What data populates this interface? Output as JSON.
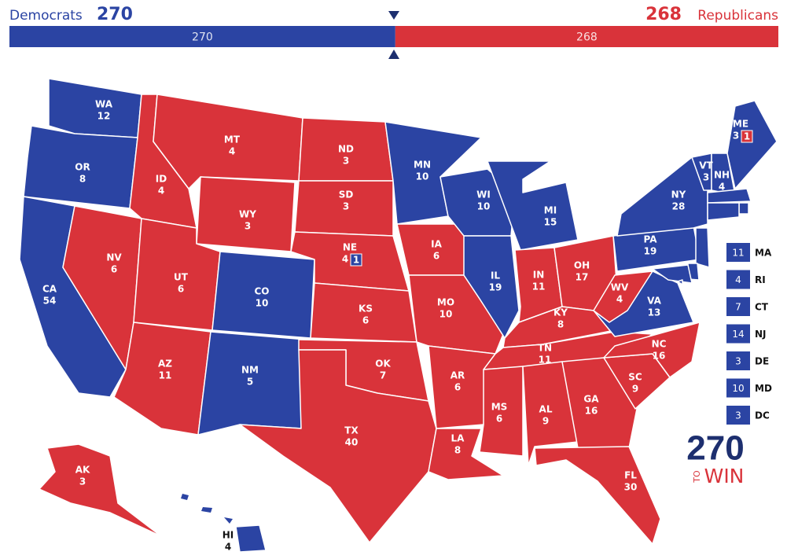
{
  "header": {
    "left": {
      "name": "Democrats",
      "total": 270,
      "color": "#2b44a3"
    },
    "right": {
      "name": "Republicans",
      "total": 268,
      "color": "#d9333a"
    }
  },
  "states": [
    {
      "abbr": "WA",
      "votes": 12,
      "color": "#2b44a3"
    },
    {
      "abbr": "OR",
      "votes": 8,
      "color": "#2b44a3"
    },
    {
      "abbr": "CA",
      "votes": 54,
      "color": "#2b44a3"
    },
    {
      "abbr": "NV",
      "votes": 6,
      "color": "#d9333a"
    },
    {
      "abbr": "ID",
      "votes": 4,
      "color": "#d9333a"
    },
    {
      "abbr": "MT",
      "votes": 4,
      "color": "#d9333a"
    },
    {
      "abbr": "WY",
      "votes": 3,
      "color": "#d9333a"
    },
    {
      "abbr": "UT",
      "votes": 6,
      "color": "#d9333a"
    },
    {
      "abbr": "CO",
      "votes": 10,
      "color": "#2b44a3"
    },
    {
      "abbr": "AZ",
      "votes": 11,
      "color": "#d9333a"
    },
    {
      "abbr": "NM",
      "votes": 5,
      "color": "#2b44a3"
    },
    {
      "abbr": "ND",
      "votes": 3,
      "color": "#d9333a"
    },
    {
      "abbr": "SD",
      "votes": 3,
      "color": "#d9333a"
    },
    {
      "abbr": "NE",
      "votes": 4,
      "color": "#d9333a",
      "district": {
        "votes": 1,
        "color": "#2b44a3"
      }
    },
    {
      "abbr": "KS",
      "votes": 6,
      "color": "#d9333a"
    },
    {
      "abbr": "OK",
      "votes": 7,
      "color": "#d9333a"
    },
    {
      "abbr": "TX",
      "votes": 40,
      "color": "#d9333a"
    },
    {
      "abbr": "MN",
      "votes": 10,
      "color": "#2b44a3"
    },
    {
      "abbr": "IA",
      "votes": 6,
      "color": "#d9333a"
    },
    {
      "abbr": "MO",
      "votes": 10,
      "color": "#d9333a"
    },
    {
      "abbr": "AR",
      "votes": 6,
      "color": "#d9333a"
    },
    {
      "abbr": "LA",
      "votes": 8,
      "color": "#d9333a"
    },
    {
      "abbr": "WI",
      "votes": 10,
      "color": "#2b44a3"
    },
    {
      "abbr": "IL",
      "votes": 19,
      "color": "#2b44a3"
    },
    {
      "abbr": "MI",
      "votes": 15,
      "color": "#2b44a3"
    },
    {
      "abbr": "IN",
      "votes": 11,
      "color": "#d9333a"
    },
    {
      "abbr": "OH",
      "votes": 17,
      "color": "#d9333a"
    },
    {
      "abbr": "KY",
      "votes": 8,
      "color": "#d9333a"
    },
    {
      "abbr": "TN",
      "votes": 11,
      "color": "#d9333a"
    },
    {
      "abbr": "MS",
      "votes": 6,
      "color": "#d9333a"
    },
    {
      "abbr": "AL",
      "votes": 9,
      "color": "#d9333a"
    },
    {
      "abbr": "GA",
      "votes": 16,
      "color": "#d9333a"
    },
    {
      "abbr": "FL",
      "votes": 30,
      "color": "#d9333a"
    },
    {
      "abbr": "SC",
      "votes": 9,
      "color": "#d9333a"
    },
    {
      "abbr": "NC",
      "votes": 16,
      "color": "#d9333a"
    },
    {
      "abbr": "VA",
      "votes": 13,
      "color": "#2b44a3"
    },
    {
      "abbr": "WV",
      "votes": 4,
      "color": "#d9333a"
    },
    {
      "abbr": "PA",
      "votes": 19,
      "color": "#2b44a3"
    },
    {
      "abbr": "NY",
      "votes": 28,
      "color": "#2b44a3"
    },
    {
      "abbr": "VT",
      "votes": 3,
      "color": "#2b44a3"
    },
    {
      "abbr": "NH",
      "votes": 4,
      "color": "#2b44a3"
    },
    {
      "abbr": "ME",
      "votes": 3,
      "color": "#2b44a3",
      "district": {
        "votes": 1,
        "color": "#d9333a"
      }
    },
    {
      "abbr": "MA",
      "votes": 11,
      "color": "#2b44a3",
      "callout": true
    },
    {
      "abbr": "RI",
      "votes": 4,
      "color": "#2b44a3",
      "callout": true
    },
    {
      "abbr": "CT",
      "votes": 7,
      "color": "#2b44a3",
      "callout": true
    },
    {
      "abbr": "NJ",
      "votes": 14,
      "color": "#2b44a3",
      "callout": true
    },
    {
      "abbr": "DE",
      "votes": 3,
      "color": "#2b44a3",
      "callout": true
    },
    {
      "abbr": "MD",
      "votes": 10,
      "color": "#2b44a3",
      "callout": true
    },
    {
      "abbr": "DC",
      "votes": 3,
      "color": "#2b44a3",
      "callout": true
    },
    {
      "abbr": "AK",
      "votes": 3,
      "color": "#d9333a"
    },
    {
      "abbr": "HI",
      "votes": 4,
      "color": "#2b44a3"
    }
  ],
  "logo": {
    "number": "270",
    "small": "TO",
    "word": "WIN"
  }
}
